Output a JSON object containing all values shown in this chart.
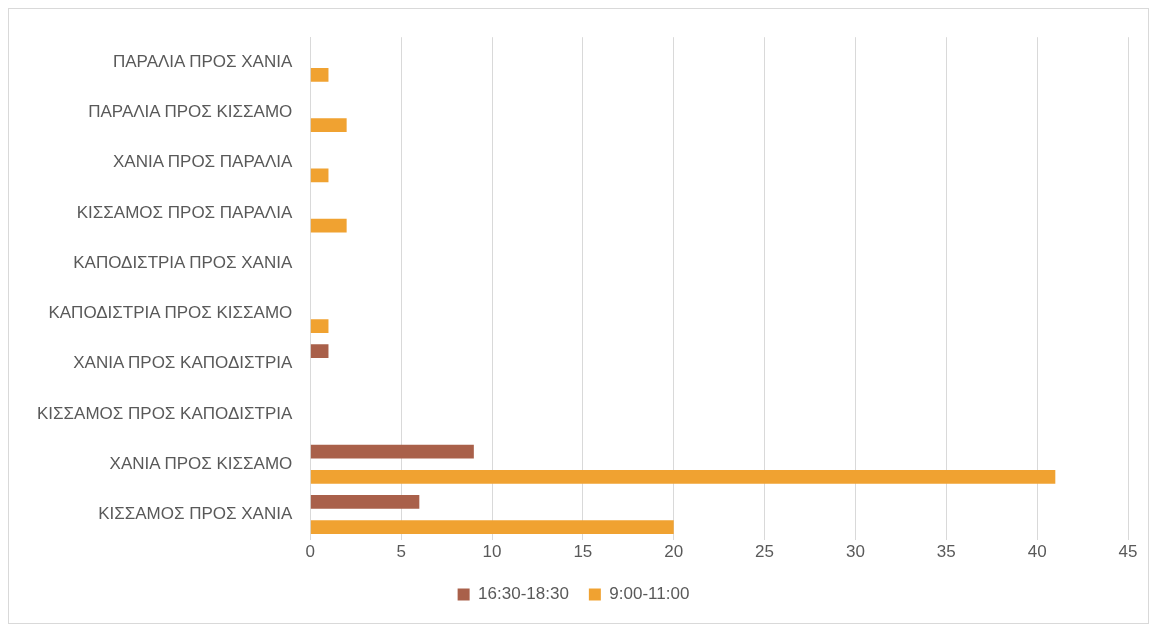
{
  "chart_data": {
    "type": "bar",
    "orientation": "horizontal",
    "categories": [
      "ΠΑΡΑΛΙΑ ΠΡΟΣ ΧΑΝΙΑ",
      "ΠΑΡΑΛΙΑ ΠΡΟΣ ΚΙΣΣΑΜΟ",
      "ΧΑΝΙΑ ΠΡΟΣ ΠΑΡΑΛΙΑ",
      "ΚΙΣΣΑΜΟΣ ΠΡΟΣ ΠΑΡΑΛΙΑ",
      "ΚΑΠΟΔΙΣΤΡΙΑ ΠΡΟΣ ΧΑΝΙΑ",
      "ΚΑΠΟΔΙΣΤΡΙΑ ΠΡΟΣ ΚΙΣΣΑΜΟ",
      "ΧΑΝΙΑ ΠΡΟΣ ΚΑΠΟΔΙΣΤΡΙΑ",
      "ΚΙΣΣΑΜΟΣ ΠΡΟΣ ΚΑΠΟΔΙΣΤΡΙΑ",
      "ΧΑΝΙΑ ΠΡΟΣ ΚΙΣΣΑΜΟ",
      "ΚΙΣΣΑΜΟΣ ΠΡΟΣ ΧΑΝΙΑ"
    ],
    "series": [
      {
        "name": "16:30-18:30",
        "color": "#a9604a",
        "values": [
          null,
          null,
          null,
          null,
          null,
          null,
          1,
          null,
          9,
          6
        ]
      },
      {
        "name": "9:00-11:00",
        "color": "#f0a231",
        "values": [
          1,
          2,
          1,
          2,
          null,
          1,
          null,
          null,
          41,
          20
        ]
      }
    ],
    "xlim": [
      0,
      45
    ],
    "xticks": [
      0,
      5,
      10,
      15,
      20,
      25,
      30,
      35,
      40,
      45
    ],
    "grid": "x",
    "legend": "bottom"
  }
}
